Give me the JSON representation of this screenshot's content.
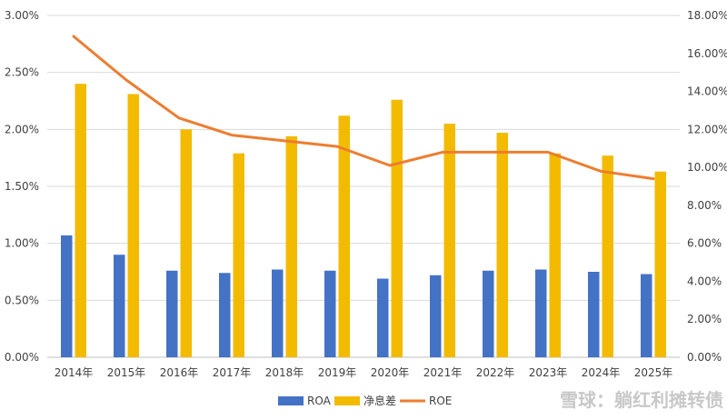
{
  "chart_data": {
    "type": "bar",
    "categories": [
      "2014年",
      "2015年",
      "2016年",
      "2017年",
      "2018年",
      "2019年",
      "2020年",
      "2021年",
      "2022年",
      "2023年",
      "2024年",
      "2025年"
    ],
    "series": [
      {
        "name": "ROA",
        "type": "bar",
        "axis": "left",
        "color": "#4472C4",
        "values": [
          1.07,
          0.9,
          0.76,
          0.74,
          0.77,
          0.76,
          0.69,
          0.72,
          0.76,
          0.77,
          0.75,
          0.73
        ]
      },
      {
        "name": "净息差",
        "type": "bar",
        "axis": "left",
        "color": "#F2BB00",
        "values": [
          2.4,
          2.31,
          2.0,
          1.79,
          1.94,
          2.12,
          2.26,
          2.05,
          1.97,
          1.79,
          1.77,
          1.63
        ]
      },
      {
        "name": "ROE",
        "type": "line",
        "axis": "right",
        "color": "#ED7D31",
        "values": [
          16.9,
          14.6,
          12.6,
          11.7,
          11.4,
          11.1,
          10.1,
          10.8,
          10.8,
          10.8,
          9.8,
          9.4
        ]
      }
    ],
    "y_left": {
      "min": 0,
      "max": 3.0,
      "step": 0.5,
      "tick_labels": [
        "0.00%",
        "0.50%",
        "1.00%",
        "1.50%",
        "2.00%",
        "2.50%",
        "3.00%"
      ]
    },
    "y_right": {
      "min": 0,
      "max": 18,
      "step": 2,
      "tick_labels": [
        "0.00%",
        "2.00%",
        "4.00%",
        "6.00%",
        "8.00%",
        "10.00%",
        "12.00%",
        "14.00%",
        "16.00%",
        "18.00%"
      ]
    },
    "grid": true,
    "legend": "bottom-center",
    "title": "",
    "xlabel": "",
    "ylabel": ""
  },
  "watermark": {
    "text": "雪球：躺红利摊转债"
  }
}
